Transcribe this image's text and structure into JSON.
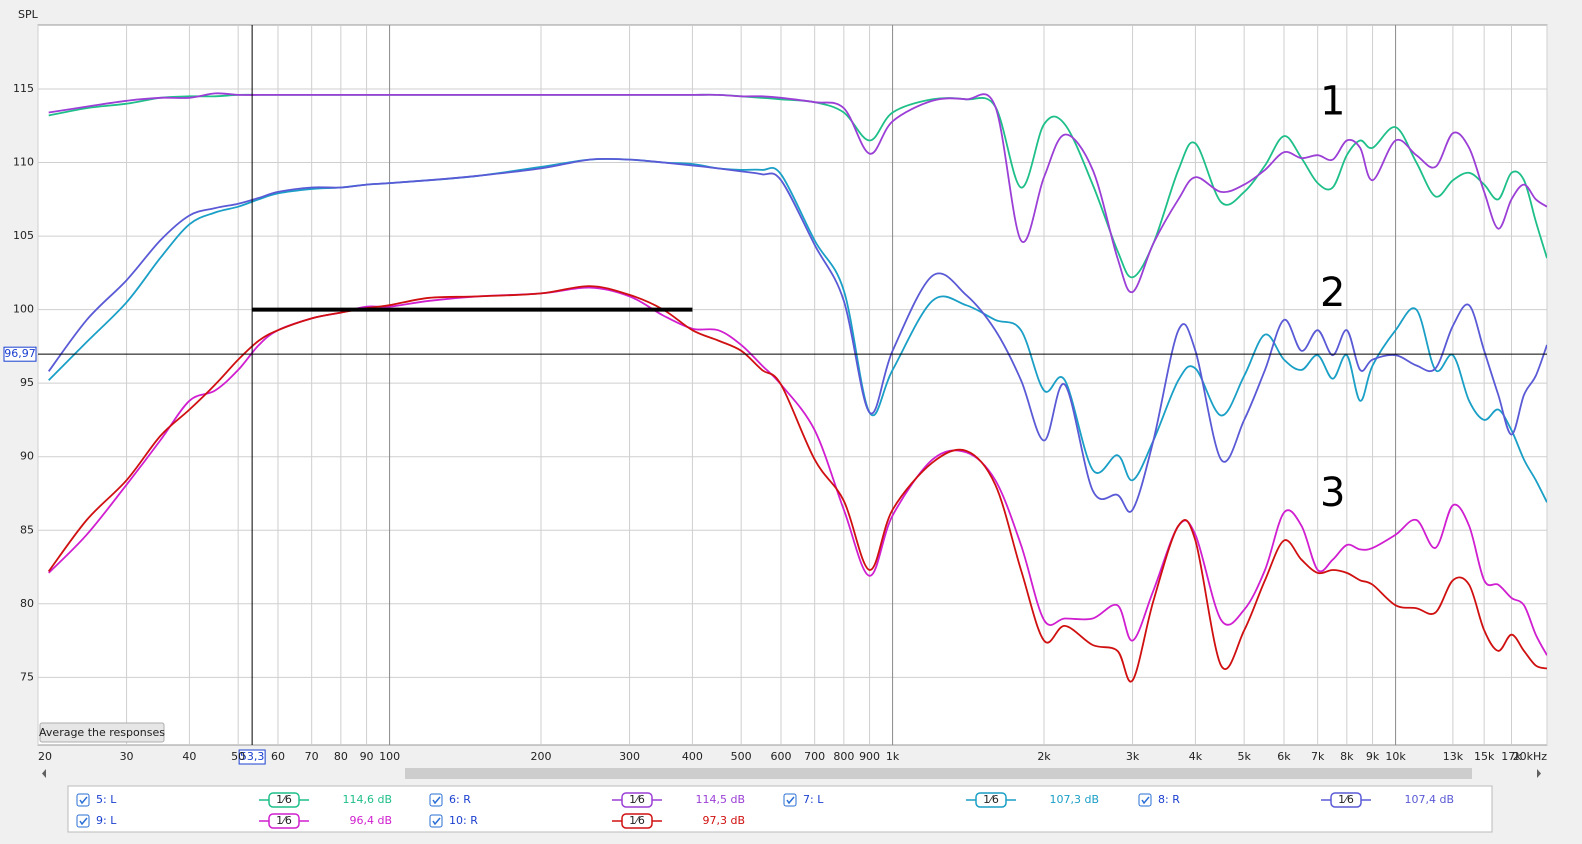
{
  "chart_data": {
    "type": "line",
    "y_label": "SPL",
    "log_x": true,
    "grid": true,
    "xlim": [
      20,
      20000
    ],
    "ylim": [
      70.4,
      119.35
    ],
    "yticks": [
      75,
      80,
      85,
      90,
      95,
      100,
      105,
      110,
      115
    ],
    "xticks": [
      20,
      30,
      40,
      50,
      60,
      70,
      80,
      90,
      100,
      200,
      300,
      400,
      500,
      600,
      700,
      800,
      900,
      {
        "value": 1000,
        "label": "1k"
      },
      {
        "value": 2000,
        "label": "2k"
      },
      {
        "value": 3000,
        "label": "3k"
      },
      {
        "value": 4000,
        "label": "4k"
      },
      {
        "value": 5000,
        "label": "5k"
      },
      {
        "value": 6000,
        "label": "6k"
      },
      {
        "value": 7000,
        "label": "7k"
      },
      {
        "value": 8000,
        "label": "8k"
      },
      {
        "value": 9000,
        "label": "9k"
      },
      {
        "value": 10000,
        "label": "10k"
      },
      {
        "value": 13000,
        "label": "13k"
      },
      {
        "value": 15000,
        "label": "15k"
      },
      {
        "value": 17000,
        "label": "17k"
      },
      {
        "value": 20000,
        "label": "20kHz"
      }
    ],
    "x": [
      21,
      25,
      30,
      35,
      40,
      45,
      50,
      55,
      60,
      70,
      80,
      90,
      100,
      120,
      150,
      200,
      250,
      300,
      350,
      400,
      450,
      500,
      550,
      600,
      700,
      800,
      900,
      1000,
      1200,
      1400,
      1600,
      1800,
      2000,
      2200,
      2500,
      2800,
      3000,
      3300,
      3700,
      4000,
      4500,
      5000,
      5500,
      6000,
      6500,
      7000,
      7500,
      8000,
      8500,
      9000,
      10000,
      11000,
      12000,
      13000,
      14000,
      15000,
      16000,
      17000,
      18000,
      19000,
      20000
    ],
    "series": [
      {
        "name": "5: L",
        "color": "#1fbf8a",
        "smoothing": "1⁄6",
        "level": "114,6 dB",
        "values": [
          113.2,
          113.7,
          114,
          114.4,
          114.5,
          114.5,
          114.6,
          114.6,
          114.6,
          114.6,
          114.6,
          114.6,
          114.6,
          114.6,
          114.6,
          114.6,
          114.6,
          114.6,
          114.6,
          114.6,
          114.6,
          114.5,
          114.4,
          114.3,
          114.1,
          113.4,
          111.5,
          113.4,
          114.3,
          114.3,
          113.8,
          108.3,
          112.6,
          112.6,
          108.5,
          104,
          102.2,
          104.5,
          109.5,
          111.3,
          107.3,
          108,
          109.8,
          111.8,
          110.3,
          108.6,
          108.3,
          110.5,
          111.5,
          111,
          112.4,
          110,
          107.7,
          108.8,
          109.3,
          108.5,
          107.5,
          109.3,
          108.8,
          106,
          103.5
        ]
      },
      {
        "name": "6: R",
        "color": "#9b3fd6",
        "smoothing": "1⁄6",
        "level": "114,5 dB",
        "values": [
          113.4,
          113.8,
          114.2,
          114.4,
          114.4,
          114.7,
          114.6,
          114.6,
          114.6,
          114.6,
          114.6,
          114.6,
          114.6,
          114.6,
          114.6,
          114.6,
          114.6,
          114.6,
          114.6,
          114.6,
          114.6,
          114.5,
          114.5,
          114.4,
          114.1,
          113.7,
          110.6,
          112.8,
          114.2,
          114.3,
          113.8,
          104.7,
          109,
          111.9,
          109.5,
          103.5,
          101.2,
          104.5,
          107.5,
          109,
          108,
          108.5,
          109.5,
          110.7,
          110.3,
          110.5,
          110.2,
          111.5,
          111,
          108.8,
          111.5,
          110.5,
          109.7,
          112,
          111,
          108,
          105.5,
          107.5,
          108.5,
          107.5,
          107
        ]
      },
      {
        "name": "7: L",
        "color": "#1a9fc6",
        "smoothing": "1⁄6",
        "level": "107,3 dB",
        "values": [
          95.2,
          97.8,
          100.5,
          103.5,
          105.8,
          106.6,
          107,
          107.5,
          107.9,
          108.2,
          108.3,
          108.5,
          108.6,
          108.8,
          109.1,
          109.7,
          110.2,
          110.2,
          110,
          109.9,
          109.6,
          109.5,
          109.5,
          109.2,
          104.7,
          101.3,
          93,
          95.9,
          100.6,
          100.3,
          99.3,
          98.6,
          94.5,
          95.2,
          89.1,
          90.1,
          88.4,
          91.1,
          95.2,
          96,
          92.8,
          95.5,
          98.3,
          96.6,
          95.9,
          96.9,
          95.3,
          96.9,
          93.8,
          96.2,
          98.6,
          100,
          95.9,
          96.9,
          93.8,
          92.5,
          93.2,
          91.8,
          89.8,
          88.4,
          86.9
        ]
      },
      {
        "name": "8: R",
        "color": "#5a5ad6",
        "smoothing": "1⁄6",
        "level": "107,4 dB",
        "values": [
          95.8,
          99.3,
          102,
          104.7,
          106.4,
          106.9,
          107.2,
          107.6,
          108,
          108.3,
          108.3,
          108.5,
          108.6,
          108.8,
          109.1,
          109.6,
          110.2,
          110.2,
          110,
          109.8,
          109.6,
          109.4,
          109.2,
          108.8,
          104.4,
          100.6,
          93,
          97.2,
          102.3,
          101,
          98.6,
          95.2,
          91.1,
          94.9,
          87.7,
          87.4,
          86.4,
          91.1,
          98.6,
          97.2,
          89.8,
          92.5,
          95.9,
          99.3,
          97.2,
          98.6,
          96.9,
          98.6,
          95.9,
          96.6,
          96.9,
          96.2,
          96,
          98.9,
          100.3,
          97.2,
          94.2,
          91.5,
          94.2,
          95.5,
          97.6
        ]
      },
      {
        "name": "9: L",
        "color": "#d01fd0",
        "smoothing": "1⁄6",
        "level": "96,4 dB",
        "values": [
          82.1,
          84.7,
          88.1,
          91.1,
          93.8,
          94.5,
          95.9,
          97.6,
          98.6,
          99.4,
          99.8,
          100.2,
          100.2,
          100.6,
          100.9,
          101.1,
          101.5,
          100.9,
          99.6,
          98.7,
          98.6,
          97.6,
          96.2,
          94.9,
          91.8,
          86.4,
          81.9,
          86,
          89.8,
          90.3,
          88.4,
          84,
          78.9,
          79,
          79,
          79.9,
          77.5,
          80.9,
          85.3,
          84.7,
          78.9,
          79.6,
          82.3,
          86.2,
          85.3,
          82.3,
          83,
          84,
          83.7,
          83.8,
          84.7,
          85.7,
          83.8,
          86.7,
          85.3,
          81.6,
          81.3,
          80.4,
          79.9,
          77.9,
          76.5
        ]
      },
      {
        "name": "10: R",
        "color": "#d01010",
        "smoothing": "1⁄6",
        "level": "97,3 dB",
        "values": [
          82.2,
          85.7,
          88.4,
          91.4,
          93.2,
          94.9,
          96.6,
          97.9,
          98.6,
          99.4,
          99.8,
          100.1,
          100.3,
          100.8,
          100.9,
          101.1,
          101.6,
          101,
          100,
          98.6,
          97.9,
          97.2,
          95.9,
          94.9,
          89.8,
          87,
          82.3,
          86.4,
          89.6,
          90.4,
          88.1,
          82.3,
          77.5,
          78.5,
          77.2,
          76.8,
          74.8,
          80.2,
          85.3,
          84.3,
          75.8,
          78.2,
          81.6,
          84.3,
          83,
          82.1,
          82.3,
          82.1,
          81.6,
          81.3,
          79.9,
          79.7,
          79.4,
          81.6,
          81.3,
          78.2,
          76.8,
          77.9,
          76.8,
          75.8,
          75.6
        ]
      }
    ],
    "annotations": [
      {
        "text": "1",
        "x": 7500,
        "y": 114
      },
      {
        "text": "2",
        "x": 7500,
        "y": 101
      },
      {
        "text": "3",
        "x": 7500,
        "y": 87.4
      }
    ],
    "reference_line": {
      "x": [
        53.3,
        400
      ],
      "y": 100
    },
    "cursor": {
      "x": {
        "value": 53.3,
        "label": "53,3"
      },
      "y": {
        "value": 96.97,
        "label": "96,97"
      }
    },
    "button": "Average the responses"
  }
}
